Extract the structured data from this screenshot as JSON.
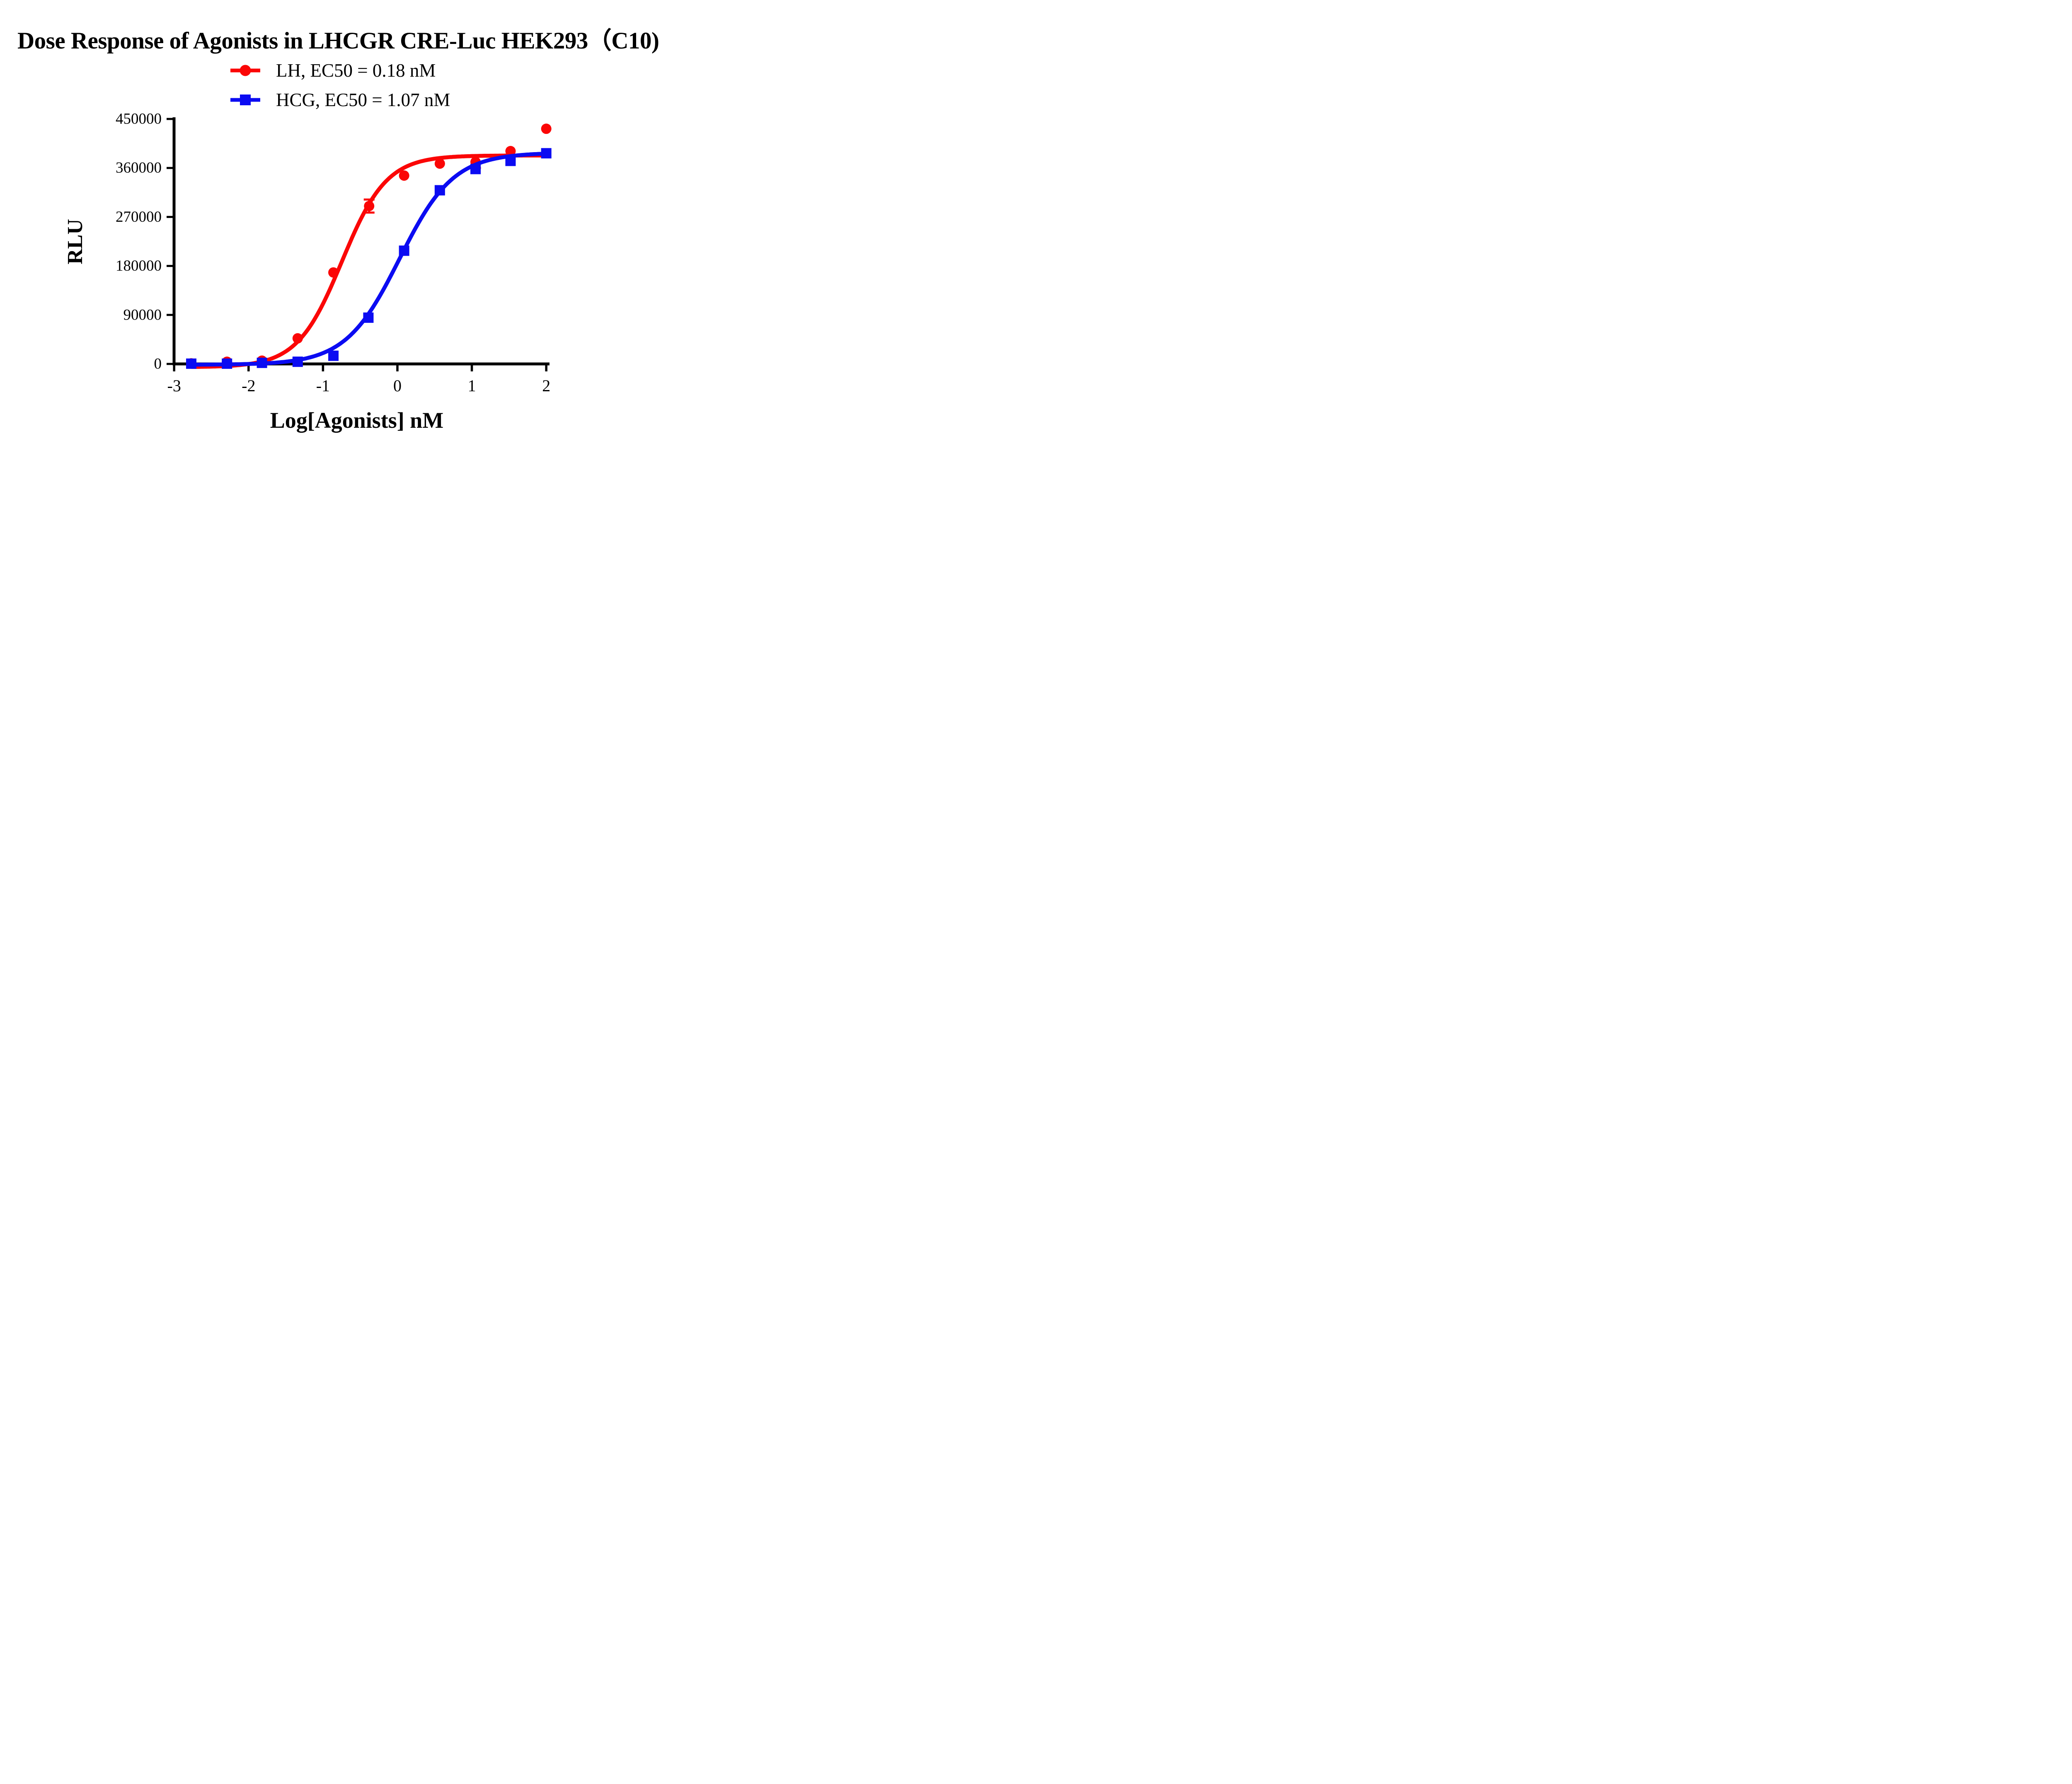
{
  "page": {
    "background": "#FFFFFF"
  },
  "title": "Dose Response of Agonists in LHCGR CRE-Luc HEK293（C10)",
  "legend": [
    {
      "label": "LH, EC50 = 0.18 nM",
      "color": "#FB0606",
      "marker": "circle"
    },
    {
      "label": "HCG, EC50 = 1.07 nM",
      "color": "#0B0BF2",
      "marker": "square"
    }
  ],
  "chart_data": {
    "type": "scatter",
    "title": "Dose Response of Agonists in LHCGR CRE-Luc HEK293（C10)",
    "xlabel": "Log[Agonists] nM",
    "ylabel": "RLU",
    "xlim": [
      -3,
      2.05
    ],
    "ylim": [
      0,
      450000
    ],
    "x_ticks": [
      -3,
      -2,
      -1,
      0,
      1,
      2
    ],
    "y_ticks": [
      0,
      90000,
      180000,
      270000,
      360000,
      450000
    ],
    "grid": false,
    "legend_position": "top-center",
    "series": [
      {
        "name": "LH",
        "legend_label": "LH, EC50 = 0.18 nM",
        "ec50_nM": 0.18,
        "color": "#FB0606",
        "marker": "circle",
        "x": [
          -2.77,
          -2.29,
          -1.82,
          -1.34,
          -0.86,
          -0.38,
          0.09,
          0.57,
          1.05,
          1.52,
          2.0
        ],
        "y": [
          1000,
          4000,
          6000,
          47000,
          168000,
          290000,
          346000,
          368000,
          371000,
          391000,
          432000
        ],
        "y_err": [
          0,
          0,
          0,
          0,
          0,
          12000,
          0,
          0,
          11000,
          0,
          0
        ],
        "fit": {
          "model": "4PL",
          "bottom": -6000,
          "top": 383000,
          "log_ec50": -0.745,
          "hill": 1.45
        }
      },
      {
        "name": "HCG",
        "legend_label": "HCG, EC50 = 1.07 nM",
        "ec50_nM": 1.07,
        "color": "#0B0BF2",
        "marker": "square",
        "x": [
          -2.77,
          -2.29,
          -1.82,
          -1.34,
          -0.86,
          -0.39,
          0.09,
          0.57,
          1.05,
          1.52,
          2.0
        ],
        "y": [
          500,
          500,
          2000,
          4000,
          15000,
          85000,
          208000,
          319000,
          358000,
          373000,
          387000
        ],
        "y_err": [
          0,
          0,
          0,
          0,
          0,
          0,
          0,
          0,
          0,
          0,
          0
        ],
        "fit": {
          "model": "4PL",
          "bottom": -1500,
          "top": 388000,
          "log_ec50": 0.029,
          "hill": 1.2
        }
      }
    ]
  }
}
